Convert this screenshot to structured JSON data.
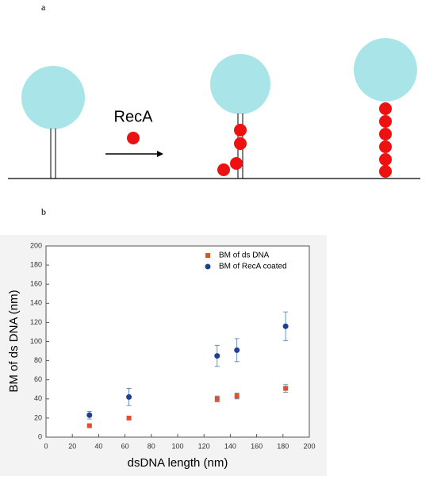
{
  "panel_a": {
    "label": "a",
    "diagram_text": "RecA"
  },
  "panel_b": {
    "label": "b"
  },
  "chart_data": {
    "type": "scatter",
    "x_label": "dsDNA length (nm)",
    "y_label": "BM of ds DNA (nm)",
    "xlim": [
      0,
      200
    ],
    "xticks": [
      0,
      20,
      40,
      60,
      80,
      100,
      120,
      140,
      160,
      180,
      200
    ],
    "ylim": [
      0,
      200
    ],
    "yticks": [
      0,
      20,
      40,
      60,
      80,
      100,
      120,
      140,
      160,
      180,
      200
    ],
    "legend": "upper right",
    "series": [
      {
        "name": "BM of ds DNA",
        "color": "#e0502a",
        "marker": "square",
        "x": [
          33,
          63,
          130,
          145,
          182
        ],
        "values": [
          12,
          20,
          40,
          43,
          51
        ],
        "errors": [
          1,
          2,
          3,
          3,
          4
        ]
      },
      {
        "name": "BM of RecA coated",
        "color": "#1f3f8f",
        "marker": "circle",
        "x": [
          33,
          63,
          130,
          145,
          182
        ],
        "values": [
          23,
          42,
          85,
          91,
          116
        ],
        "errors": [
          4,
          9,
          11,
          12,
          15
        ]
      }
    ]
  }
}
